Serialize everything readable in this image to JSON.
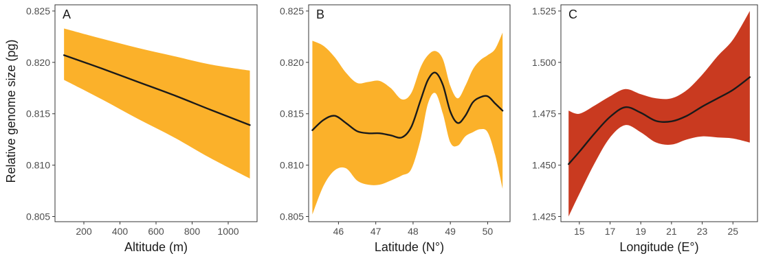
{
  "figure": {
    "ylabel": "Relative genome size (pg)"
  },
  "chart_data": [
    {
      "type": "line",
      "panel_label": "A",
      "xlabel": "Altitude (m)",
      "ylabel": "Relative genome size (pg)",
      "xlim": [
        40,
        1160
      ],
      "ylim": [
        0.8045,
        0.8256
      ],
      "x_ticks": [
        200,
        400,
        600,
        800,
        1000
      ],
      "y_ticks": [
        0.805,
        0.81,
        0.815,
        0.82,
        0.825
      ],
      "y_tick_labels": [
        "0.805",
        "0.810",
        "0.815",
        "0.820",
        "0.825"
      ],
      "grid": false,
      "band_color": "#FBB12A",
      "line_color": "#1a1a1a",
      "series": [
        {
          "x": [
            90,
            300,
            500,
            700,
            900,
            1120
          ],
          "y": [
            0.8207,
            0.8194,
            0.8181,
            0.8168,
            0.8154,
            0.8139
          ],
          "lower": [
            0.8183,
            0.8164,
            0.8145,
            0.8127,
            0.8107,
            0.8087
          ],
          "upper": [
            0.8233,
            0.8223,
            0.8214,
            0.8206,
            0.8198,
            0.8192
          ]
        }
      ]
    },
    {
      "type": "line",
      "panel_label": "B",
      "xlabel": "Latitude (N°)",
      "xlim": [
        45.2,
        50.6
      ],
      "ylim": [
        0.8045,
        0.8256
      ],
      "x_ticks": [
        46,
        47,
        48,
        49,
        50
      ],
      "y_ticks": [
        0.805,
        0.81,
        0.815,
        0.82,
        0.825
      ],
      "y_tick_labels": [
        "0.805",
        "0.810",
        "0.815",
        "0.820",
        "0.825"
      ],
      "grid": false,
      "band_color": "#FBB12A",
      "line_color": "#1a1a1a",
      "series": [
        {
          "x": [
            45.3,
            45.6,
            45.9,
            46.2,
            46.5,
            46.8,
            47.1,
            47.4,
            47.7,
            47.95,
            48.2,
            48.4,
            48.6,
            48.8,
            49.0,
            49.2,
            49.4,
            49.6,
            49.8,
            50.0,
            50.2,
            50.4
          ],
          "y": [
            0.8134,
            0.8144,
            0.8148,
            0.8141,
            0.8133,
            0.8131,
            0.8131,
            0.8129,
            0.8127,
            0.8137,
            0.8163,
            0.8183,
            0.819,
            0.8178,
            0.8152,
            0.8141,
            0.8148,
            0.8161,
            0.8166,
            0.8167,
            0.816,
            0.8153
          ],
          "lower": [
            0.8052,
            0.808,
            0.8095,
            0.8097,
            0.8085,
            0.8081,
            0.8081,
            0.8085,
            0.809,
            0.8096,
            0.8125,
            0.816,
            0.817,
            0.815,
            0.8122,
            0.8119,
            0.8128,
            0.8132,
            0.8135,
            0.8132,
            0.811,
            0.8077
          ],
          "upper": [
            0.8221,
            0.8216,
            0.8205,
            0.819,
            0.818,
            0.8181,
            0.8182,
            0.8175,
            0.8164,
            0.817,
            0.8195,
            0.8207,
            0.8211,
            0.8203,
            0.8177,
            0.8165,
            0.8177,
            0.8193,
            0.8202,
            0.8207,
            0.8213,
            0.8229
          ]
        }
      ]
    },
    {
      "type": "line",
      "panel_label": "C",
      "xlabel": "Longitude (E°)",
      "xlim": [
        13.8,
        26.6
      ],
      "ylim": [
        1.4225,
        1.528
      ],
      "x_ticks": [
        15,
        17,
        19,
        21,
        23,
        25
      ],
      "y_ticks": [
        1.425,
        1.45,
        1.475,
        1.5,
        1.525
      ],
      "y_tick_labels": [
        "1.425",
        "1.450",
        "1.475",
        "1.500",
        "1.525"
      ],
      "grid": false,
      "band_color": "#C93A20",
      "line_color": "#1a1a1a",
      "series": [
        {
          "x": [
            14.3,
            15.0,
            16.0,
            17.0,
            18.0,
            19.0,
            20.0,
            21.0,
            22.0,
            23.0,
            24.0,
            25.0,
            26.1
          ],
          "y": [
            1.4505,
            1.4565,
            1.4655,
            1.4735,
            1.4782,
            1.4755,
            1.4715,
            1.4713,
            1.474,
            1.4785,
            1.4825,
            1.4866,
            1.4928
          ],
          "lower": [
            1.425,
            1.436,
            1.451,
            1.4635,
            1.4695,
            1.466,
            1.461,
            1.46,
            1.4625,
            1.464,
            1.4635,
            1.463,
            1.461
          ],
          "upper": [
            1.4765,
            1.475,
            1.479,
            1.4835,
            1.487,
            1.4845,
            1.4825,
            1.4825,
            1.4865,
            1.494,
            1.503,
            1.511,
            1.525
          ]
        }
      ]
    }
  ]
}
